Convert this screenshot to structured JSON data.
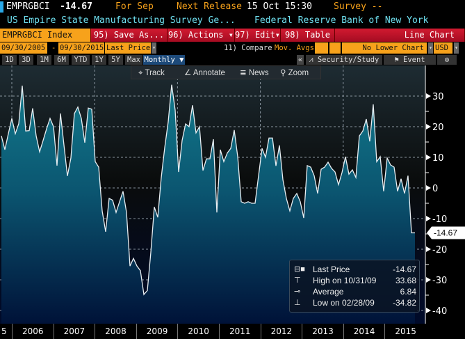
{
  "header": {
    "ticker": "EMPRGBCI",
    "last": "-14.67",
    "period": "For Sep",
    "next_release_label": "Next Release",
    "next_release": "15 Oct 15:30",
    "survey": "Survey --"
  },
  "subheader": {
    "name": "US Empire State Manufacturing Survey Ge...",
    "source": "Federal Reserve Bank of New York"
  },
  "menu": {
    "security": "EMPRGBCI Index",
    "save": "95) Save As...",
    "actions": "96) Actions ▾",
    "edit": "97) Edit▾",
    "table": "98) Table",
    "chart_type": "Line Chart"
  },
  "range": {
    "start": "09/30/2005",
    "dash": "-",
    "end": "09/30/2015",
    "field": "Last Price",
    "compare": "11) Compare",
    "movavg": "Mov. Avgs",
    "lower": "No Lower Chart",
    "currency": "USD"
  },
  "periods": [
    "1D",
    "3D",
    "1M",
    "6M",
    "YTD",
    "1Y",
    "5Y",
    "Max"
  ],
  "frequency": "Monthly ▼",
  "right_tools": {
    "collapse": "«",
    "security_study": "Security/Study",
    "event": "Event",
    "settings": "⚙"
  },
  "tools": {
    "track": "Track",
    "annotate": "Annotate",
    "news": "News",
    "zoom": "Zoom"
  },
  "legend": {
    "last_label": "Last Price",
    "last_value": "-14.67",
    "high_label": "High on 10/31/09",
    "high_value": "33.68",
    "avg_label": "Average",
    "avg_value": "6.84",
    "low_label": "Low on 02/28/09",
    "low_value": "-34.82"
  },
  "chart_data": {
    "type": "area",
    "title": "EMPRGBCI Index",
    "start": "2005-10",
    "end": "2015-09",
    "frequency": "Monthly",
    "ylim": [
      -40,
      35
    ],
    "yticks": [
      30,
      20,
      10,
      0,
      -10,
      -20,
      -30,
      -40
    ],
    "xticks": [
      "5",
      "2006",
      "2007",
      "2008",
      "2009",
      "2010",
      "2011",
      "2012",
      "2013",
      "2014",
      "2015"
    ],
    "last_label": "-14.67",
    "values": [
      17,
      12.5,
      17.7,
      22.7,
      17.7,
      21,
      33.4,
      18.6,
      18.7,
      26,
      17,
      11.8,
      15.5,
      19.3,
      22.7,
      20,
      7.3,
      24.3,
      14,
      3.9,
      9.8,
      24.3,
      26.4,
      22.7,
      14.8,
      26.1,
      25.7,
      8.6,
      6.8,
      -7.5,
      -14.3,
      -3.4,
      -4,
      -8,
      -4.5,
      -1.1,
      -8,
      -25.5,
      -23,
      -25.5,
      -27,
      -34.8,
      -33.5,
      -21,
      -6.2,
      -9.6,
      3.4,
      13.2,
      21.6,
      33.7,
      25.4,
      5.2,
      15.5,
      20.9,
      20,
      27,
      18,
      20,
      5.7,
      9.5,
      9.5,
      15.9,
      -8,
      12.5,
      8.6,
      11.4,
      12.9,
      18.9,
      10.2,
      -4.5,
      -5,
      -4.5,
      -5,
      -5,
      4,
      12.9,
      10,
      16.3,
      16.3,
      7.2,
      13.9,
      2.7,
      -3.4,
      -7.5,
      -3.4,
      -1.8,
      -4.5,
      -9.8,
      7.3,
      6.8,
      4,
      -1.8,
      6.1,
      6.8,
      8.4,
      6.4,
      5.2,
      1.1,
      5,
      10.2,
      4.5,
      5.9,
      3.4,
      17,
      18.6,
      22.5,
      15.2,
      27.3,
      8.6,
      10.2,
      -1.1,
      9.8,
      7.5,
      6.8,
      -1.1,
      3,
      -1.8,
      4,
      -14.67,
      -14.67
    ]
  },
  "colors": {
    "orange": "#f7a21b",
    "red": "#c8102e",
    "cyan": "#6fe0f0",
    "accent": "#1a8aa0"
  }
}
